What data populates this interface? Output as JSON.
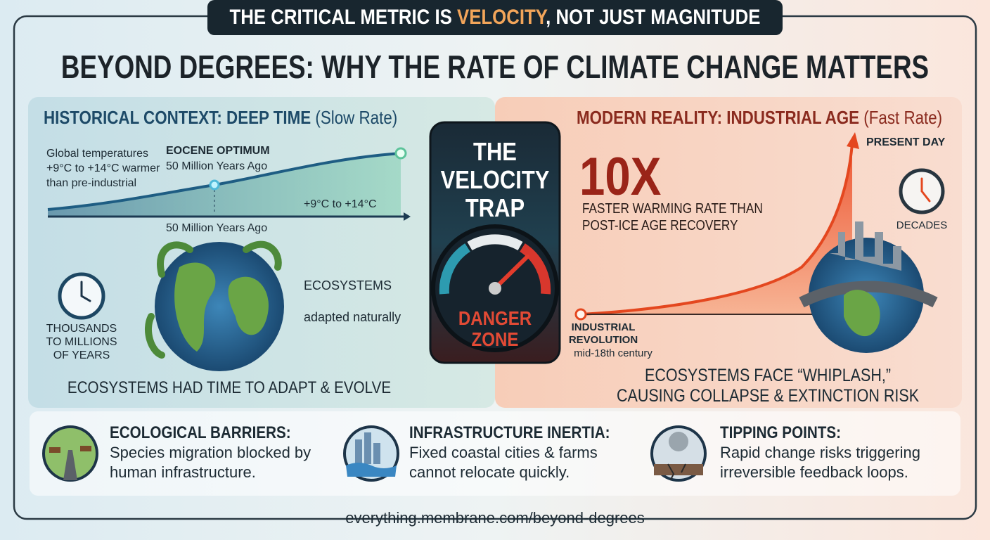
{
  "banner": {
    "before": "THE CRITICAL METRIC IS ",
    "highlight": "VELOCITY",
    "after": ", NOT JUST MAGNITUDE"
  },
  "title": "BEYOND DEGREES: WHY THE RATE OF CLIMATE CHANGE MATTERS",
  "historical": {
    "heading": "HISTORICAL CONTEXT: DEEP TIME",
    "heading_note": "(Slow Rate)",
    "chart_note": [
      "Global temperatures",
      "+9°C to +14°C warmer",
      "than pre-industrial"
    ],
    "peak_label": "EOCENE OPTIMUM",
    "peak_time": "50 Million Years Ago",
    "range_label": "+9°C to +14°C",
    "axis_label": "50 Million Years Ago",
    "clock_label": [
      "THOUSANDS",
      "TO MILLIONS",
      "OF YEARS"
    ],
    "ecosystems": "ECOSYSTEMS",
    "ecosystems_note": "adapted naturally",
    "summary": "ECOSYSTEMS HAD TIME TO ADAPT & EVOLVE"
  },
  "center": {
    "title": [
      "THE",
      "VELOCITY",
      "TRAP"
    ],
    "gauge_label": [
      "DANGER",
      "ZONE"
    ]
  },
  "modern": {
    "heading": "MODERN REALITY: INDUSTRIAL AGE",
    "heading_note": "(Fast Rate)",
    "present": "PRESENT DAY",
    "multiplier": "10X",
    "multiplier_note": [
      "FASTER WARMING RATE THAN",
      "POST-ICE AGE RECOVERY"
    ],
    "clock_label": "DECADES",
    "start_label": [
      "INDUSTRIAL",
      "REVOLUTION"
    ],
    "start_time": "mid-18th century",
    "summary": [
      "ECOSYSTEMS FACE “WHIPLASH,”",
      "CAUSING COLLAPSE & EXTINCTION RISK"
    ]
  },
  "cards": [
    {
      "title": "ECOLOGICAL BARRIERS:",
      "text": [
        "Species migration blocked by",
        "human infrastructure."
      ]
    },
    {
      "title": "INFRASTRUCTURE INERTIA:",
      "text": [
        "Fixed coastal cities & farms",
        "cannot relocate quickly."
      ]
    },
    {
      "title": "TIPPING POINTS:",
      "text": [
        "Rapid change risks triggering",
        "irreversible feedback loops."
      ]
    }
  ],
  "footer": "everything.membrane.com/beyond-degrees"
}
